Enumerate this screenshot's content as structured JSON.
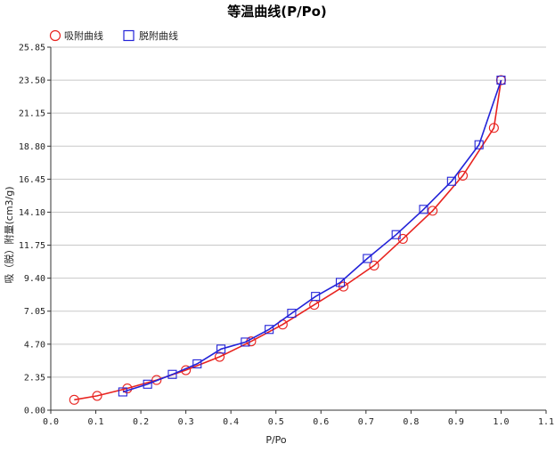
{
  "chart_data": {
    "type": "line",
    "title": "等温曲线(P/Po)",
    "xlabel": "P/Po",
    "ylabel": "吸（脱）附量(cm3/g)",
    "xlim": [
      0.0,
      1.1
    ],
    "ylim": [
      0.0,
      25.85
    ],
    "x_ticks": [
      "0.0",
      "0.1",
      "0.2",
      "0.3",
      "0.4",
      "0.5",
      "0.6",
      "0.7",
      "0.8",
      "0.9",
      "1.0",
      "1.1"
    ],
    "y_ticks": [
      "0.00",
      "2.35",
      "4.70",
      "7.05",
      "9.40",
      "11.75",
      "14.10",
      "16.45",
      "18.80",
      "21.15",
      "23.50",
      "25.85"
    ],
    "grid": "horizontal",
    "legend_position": "top-left",
    "series": [
      {
        "name": "吸附曲线",
        "color": "#e8231f",
        "marker": "circle",
        "x": [
          0.052,
          0.103,
          0.17,
          0.235,
          0.3,
          0.375,
          0.445,
          0.515,
          0.585,
          0.65,
          0.718,
          0.782,
          0.848,
          0.915,
          0.984,
          1.0
        ],
        "y": [
          0.74,
          1.02,
          1.55,
          2.15,
          2.85,
          3.8,
          4.9,
          6.1,
          7.5,
          8.8,
          10.3,
          12.2,
          14.2,
          16.7,
          20.1,
          23.5
        ]
      },
      {
        "name": "脱附曲线",
        "color": "#2323d8",
        "marker": "square",
        "x": [
          0.16,
          0.215,
          0.27,
          0.325,
          0.378,
          0.432,
          0.485,
          0.535,
          0.588,
          0.643,
          0.703,
          0.767,
          0.828,
          0.89,
          0.951,
          1.0
        ],
        "y": [
          1.3,
          1.85,
          2.55,
          3.3,
          4.35,
          4.85,
          5.75,
          6.9,
          8.1,
          9.1,
          10.8,
          12.5,
          14.3,
          16.3,
          18.9,
          23.5
        ]
      }
    ]
  }
}
